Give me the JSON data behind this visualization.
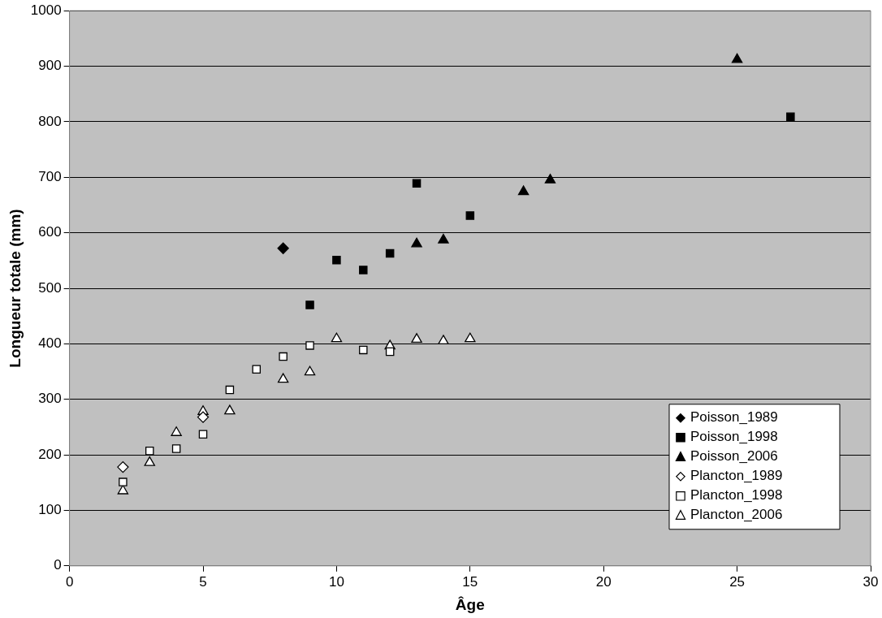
{
  "chart_data": {
    "type": "scatter",
    "xlabel": "Âge",
    "ylabel": "Longueur totale (mm)",
    "xlim": [
      0,
      30
    ],
    "xticks": [
      0,
      5,
      10,
      15,
      20,
      25,
      30
    ],
    "ylim": [
      0,
      1000
    ],
    "yticks": [
      0,
      100,
      200,
      300,
      400,
      500,
      600,
      700,
      800,
      900,
      1000
    ],
    "grid": "y",
    "legend": "bottom right",
    "series": [
      {
        "name": "Poisson_1989",
        "color": "#000000",
        "marker": "diamond",
        "x": [
          8
        ],
        "values": [
          572
        ]
      },
      {
        "name": "Poisson_1998",
        "color": "#000000",
        "marker": "square",
        "x": [
          9,
          10,
          11,
          12,
          13,
          15,
          27
        ],
        "values": [
          470,
          551,
          533,
          563,
          689,
          631,
          809
        ]
      },
      {
        "name": "Poisson_2006",
        "color": "#000000",
        "marker": "triangle",
        "x": [
          13,
          14,
          17,
          18,
          25
        ],
        "values": [
          580,
          587,
          674,
          695,
          912
        ]
      },
      {
        "name": "Plancton_1989",
        "color": "#ffffff",
        "marker": "diamond",
        "x": [
          2,
          5
        ],
        "values": [
          178,
          268
        ]
      },
      {
        "name": "Plancton_1998",
        "color": "#ffffff",
        "marker": "square",
        "x": [
          2,
          3,
          4,
          5,
          6,
          7,
          8,
          9,
          11,
          12
        ],
        "values": [
          151,
          207,
          211,
          237,
          317,
          354,
          377,
          397,
          389,
          386
        ]
      },
      {
        "name": "Plancton_2006",
        "color": "#ffffff",
        "marker": "triangle",
        "x": [
          2,
          3,
          4,
          5,
          6,
          8,
          9,
          10,
          12,
          13,
          14,
          15
        ],
        "values": [
          135,
          186,
          240,
          278,
          279,
          336,
          349,
          409,
          396,
          408,
          405,
          409
        ]
      }
    ]
  }
}
